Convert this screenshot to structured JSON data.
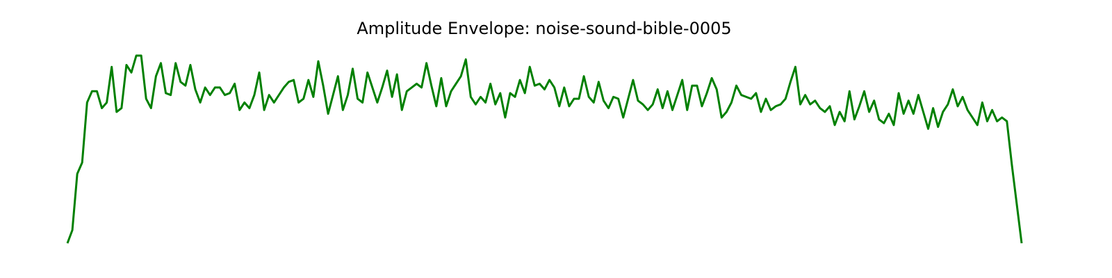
{
  "chart_data": {
    "type": "line",
    "title": "Amplitude Envelope: noise-sound-bible-0005",
    "color": "#008000",
    "ylim": [
      0,
      1
    ],
    "values": [
      0,
      0.07,
      0.37,
      0.43,
      0.75,
      0.81,
      0.81,
      0.72,
      0.75,
      0.94,
      0.7,
      0.72,
      0.95,
      0.91,
      1.0,
      1.0,
      0.77,
      0.72,
      0.89,
      0.96,
      0.8,
      0.79,
      0.96,
      0.86,
      0.84,
      0.95,
      0.82,
      0.75,
      0.83,
      0.79,
      0.83,
      0.83,
      0.79,
      0.8,
      0.85,
      0.71,
      0.75,
      0.72,
      0.79,
      0.91,
      0.71,
      0.79,
      0.75,
      0.79,
      0.83,
      0.86,
      0.87,
      0.75,
      0.77,
      0.87,
      0.78,
      0.97,
      0.84,
      0.69,
      0.79,
      0.89,
      0.71,
      0.79,
      0.93,
      0.77,
      0.75,
      0.91,
      0.83,
      0.75,
      0.83,
      0.92,
      0.78,
      0.9,
      0.71,
      0.81,
      0.83,
      0.85,
      0.83,
      0.96,
      0.84,
      0.73,
      0.88,
      0.73,
      0.81,
      0.85,
      0.89,
      0.98,
      0.78,
      0.74,
      0.78,
      0.75,
      0.85,
      0.74,
      0.8,
      0.67,
      0.8,
      0.78,
      0.87,
      0.8,
      0.94,
      0.84,
      0.85,
      0.82,
      0.87,
      0.83,
      0.73,
      0.83,
      0.73,
      0.77,
      0.77,
      0.89,
      0.78,
      0.75,
      0.86,
      0.76,
      0.72,
      0.78,
      0.77,
      0.67,
      0.77,
      0.87,
      0.76,
      0.74,
      0.71,
      0.74,
      0.82,
      0.72,
      0.81,
      0.71,
      0.79,
      0.87,
      0.71,
      0.84,
      0.84,
      0.73,
      0.8,
      0.88,
      0.82,
      0.67,
      0.7,
      0.75,
      0.84,
      0.79,
      0.78,
      0.77,
      0.8,
      0.7,
      0.77,
      0.71,
      0.73,
      0.74,
      0.77,
      0.86,
      0.94,
      0.74,
      0.79,
      0.74,
      0.76,
      0.72,
      0.7,
      0.73,
      0.63,
      0.7,
      0.65,
      0.81,
      0.66,
      0.73,
      0.81,
      0.7,
      0.76,
      0.66,
      0.64,
      0.69,
      0.63,
      0.8,
      0.69,
      0.76,
      0.69,
      0.79,
      0.7,
      0.61,
      0.72,
      0.62,
      0.7,
      0.74,
      0.82,
      0.73,
      0.78,
      0.71,
      0.67,
      0.63,
      0.75,
      0.65,
      0.71,
      0.65,
      0.67,
      0.65,
      0.42,
      0.21,
      0
    ]
  }
}
